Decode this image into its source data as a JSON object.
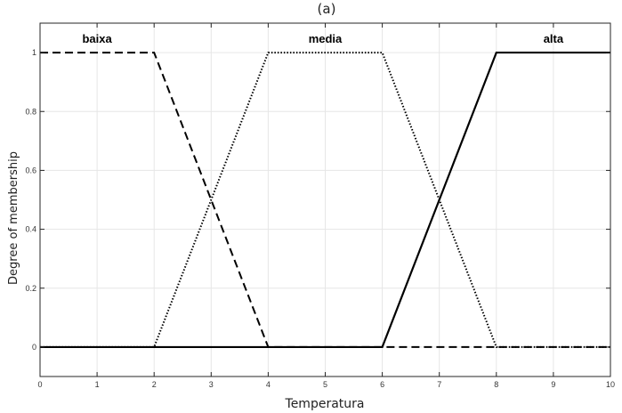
{
  "chart_data": {
    "type": "line",
    "title": "(a)",
    "xlabel": "Temperatura",
    "ylabel": "Degree of membership",
    "xlim": [
      0,
      10
    ],
    "ylim": [
      -0.1,
      1.1
    ],
    "xticks": [
      0,
      1,
      2,
      3,
      4,
      5,
      6,
      7,
      8,
      9,
      10
    ],
    "yticks": [
      0,
      0.2,
      0.4,
      0.6,
      0.8,
      1
    ],
    "ytick_labels": [
      "0",
      "0.2",
      "0.4",
      "0.6",
      "0.8",
      "1"
    ],
    "grid": true,
    "series": [
      {
        "name": "baixa",
        "style": "dashed",
        "color": "#000000",
        "x": [
          0,
          2,
          4,
          10
        ],
        "y": [
          1,
          1,
          0,
          0
        ],
        "label_x": 1,
        "label_y": 1.045
      },
      {
        "name": "media",
        "style": "dotted",
        "color": "#000000",
        "x": [
          0,
          2,
          4,
          6,
          8,
          10
        ],
        "y": [
          0,
          0,
          1,
          1,
          0,
          0
        ],
        "label_x": 5,
        "label_y": 1.045
      },
      {
        "name": "alta",
        "style": "solid",
        "color": "#000000",
        "x": [
          0,
          6,
          8,
          10
        ],
        "y": [
          0,
          0,
          1,
          1
        ],
        "label_x": 9,
        "label_y": 1.045
      }
    ]
  }
}
